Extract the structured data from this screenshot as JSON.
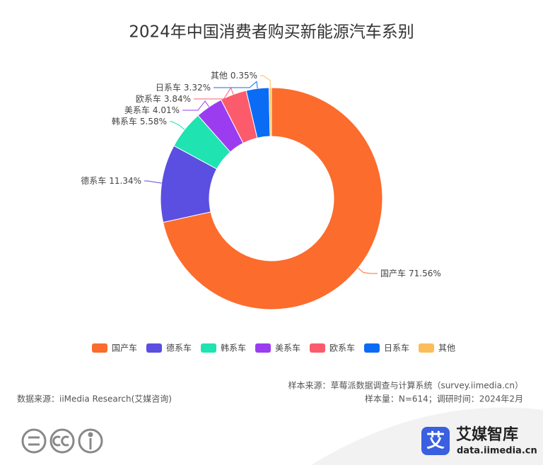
{
  "chart_data": {
    "type": "donut",
    "title": "2024年中国消费者购买新能源汽车系别",
    "categories": [
      "国产车",
      "德系车",
      "韩系车",
      "美系车",
      "欧系车",
      "日系车",
      "其他"
    ],
    "values": [
      71.56,
      11.34,
      5.58,
      4.01,
      3.84,
      3.32,
      0.35
    ],
    "value_labels": [
      "71.56%",
      "11.34%",
      "5.58%",
      "4.01%",
      "3.84%",
      "3.32%",
      "0.35%"
    ],
    "colors": [
      "#fb6c2d",
      "#5a4fe0",
      "#1fe3b0",
      "#9b3cf0",
      "#fb5b6b",
      "#0a6cf5",
      "#fbbd5a"
    ],
    "legend": "bottom"
  },
  "footer": {
    "sample_source": "样本来源：草莓派数据调查与计算系统（survey.iimedia.cn）",
    "data_source": "数据来源：iiMedia Research(艾媒咨询)",
    "sample_info": "样本量：N=614；调研时间：2024年2月",
    "logo_icon": "艾",
    "logo_name": "艾媒智库",
    "logo_url": "data.iimedia.cn"
  }
}
